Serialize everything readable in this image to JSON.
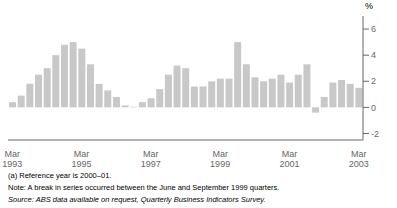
{
  "chart_data": {
    "type": "bar",
    "y_label": "%",
    "categories": [
      "Mar\n1993",
      null,
      null,
      null,
      null,
      null,
      null,
      null,
      "Mar\n1995",
      null,
      null,
      null,
      null,
      null,
      null,
      null,
      "Mar\n1997",
      null,
      null,
      null,
      null,
      null,
      null,
      null,
      "Mar\n1999",
      null,
      null,
      null,
      null,
      null,
      null,
      null,
      "Mar\n2001",
      null,
      null,
      null,
      null,
      null,
      null,
      null,
      "Mar\n2003"
    ],
    "values": [
      0.4,
      0.9,
      1.8,
      2.5,
      3.0,
      4.0,
      4.8,
      5.0,
      4.5,
      3.3,
      1.8,
      1.3,
      0.8,
      0.15,
      0.05,
      0.4,
      0.7,
      1.4,
      2.5,
      3.2,
      3.0,
      1.6,
      1.6,
      2.0,
      2.2,
      2.2,
      5.0,
      3.3,
      2.3,
      2.0,
      2.2,
      2.5,
      1.9,
      2.5,
      3.3,
      -0.4,
      0.8,
      1.9,
      2.1,
      1.8,
      1.5
    ],
    "color": "#c8c8c8",
    "ylim": [
      -2.5,
      7.0
    ],
    "yticks": [
      -2,
      0,
      2,
      4,
      6
    ],
    "grid": false,
    "annotations": [
      "(a) Reference year is 2000–01.",
      "Note: A break in series occurred between the June and September 1999 quarters.",
      "Source: ABS data available on request, Quarterly Business Indicators Survey."
    ]
  }
}
